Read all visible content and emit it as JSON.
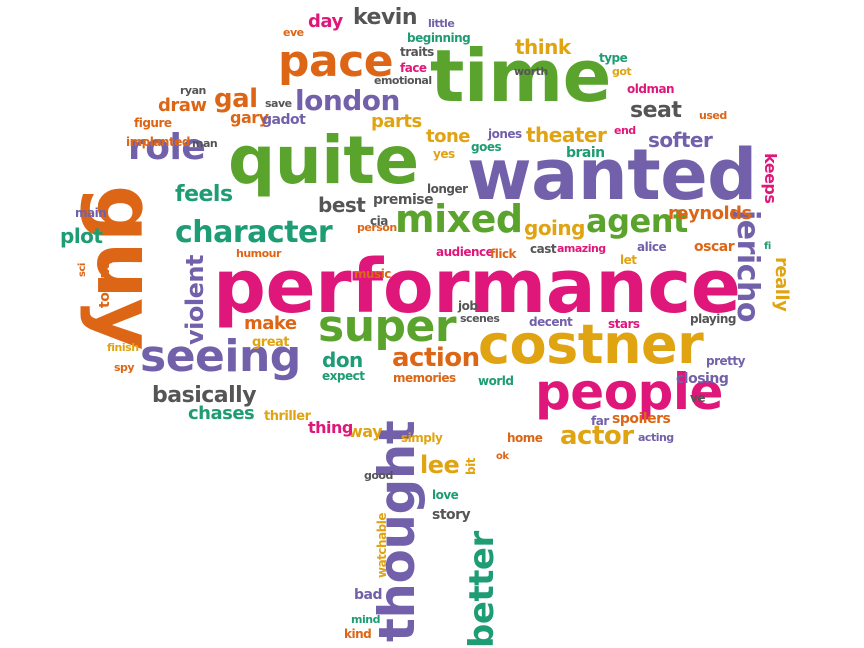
{
  "palette": {
    "magenta": "#e0177a",
    "purple": "#7261aa",
    "green": "#5aa42e",
    "orange": "#dd6516",
    "gold": "#e0a312",
    "teal": "#1e9c74",
    "gray": "#555555"
  },
  "words": [
    {
      "text": "performance",
      "color": "magenta"
    },
    {
      "text": "wanted",
      "color": "purple"
    },
    {
      "text": "time",
      "color": "green"
    },
    {
      "text": "quite",
      "color": "green"
    },
    {
      "text": "guy",
      "color": "orange"
    },
    {
      "text": "costner",
      "color": "gold"
    },
    {
      "text": "thought",
      "color": "purple"
    },
    {
      "text": "people",
      "color": "magenta"
    },
    {
      "text": "seeing",
      "color": "purple"
    },
    {
      "text": "super",
      "color": "green"
    },
    {
      "text": "pace",
      "color": "orange"
    },
    {
      "text": "mixed",
      "color": "green"
    },
    {
      "text": "character",
      "color": "teal"
    },
    {
      "text": "role",
      "color": "purple"
    },
    {
      "text": "london",
      "color": "purple"
    },
    {
      "text": "agent",
      "color": "green"
    },
    {
      "text": "better",
      "color": "teal"
    },
    {
      "text": "jericho",
      "color": "purple"
    },
    {
      "text": "action",
      "color": "orange"
    },
    {
      "text": "actor",
      "color": "gold"
    },
    {
      "text": "basically",
      "color": "gray"
    },
    {
      "text": "violent",
      "color": "purple"
    },
    {
      "text": "gal",
      "color": "orange"
    },
    {
      "text": "feels",
      "color": "teal"
    },
    {
      "text": "kevin",
      "color": "gray"
    },
    {
      "text": "seat",
      "color": "gray"
    },
    {
      "text": "softer",
      "color": "purple"
    },
    {
      "text": "theater",
      "color": "gold"
    },
    {
      "text": "think",
      "color": "gold"
    },
    {
      "text": "reynolds",
      "color": "orange"
    },
    {
      "text": "going",
      "color": "gold"
    },
    {
      "text": "lee",
      "color": "gold"
    },
    {
      "text": "plot",
      "color": "teal"
    },
    {
      "text": "really",
      "color": "gold"
    },
    {
      "text": "best",
      "color": "gray"
    },
    {
      "text": "make",
      "color": "orange"
    },
    {
      "text": "don",
      "color": "teal"
    },
    {
      "text": "chases",
      "color": "teal"
    },
    {
      "text": "draw",
      "color": "orange"
    },
    {
      "text": "tone",
      "color": "gold"
    },
    {
      "text": "parts",
      "color": "gold"
    },
    {
      "text": "keeps",
      "color": "magenta"
    },
    {
      "text": "gary",
      "color": "orange"
    },
    {
      "text": "gadot",
      "color": "purple"
    },
    {
      "text": "day",
      "color": "magenta"
    },
    {
      "text": "way",
      "color": "gold"
    },
    {
      "text": "thing",
      "color": "magenta"
    },
    {
      "text": "tommy",
      "color": "orange"
    },
    {
      "text": "cast",
      "color": "gray"
    },
    {
      "text": "premise",
      "color": "gray"
    },
    {
      "text": "memories",
      "color": "orange"
    },
    {
      "text": "spoilers",
      "color": "orange"
    },
    {
      "text": "closing",
      "color": "purple"
    },
    {
      "text": "jones",
      "color": "purple"
    },
    {
      "text": "home",
      "color": "orange"
    },
    {
      "text": "story",
      "color": "gray"
    },
    {
      "text": "love",
      "color": "teal"
    },
    {
      "text": "simply",
      "color": "gold"
    },
    {
      "text": "watchable",
      "color": "gold"
    },
    {
      "text": "bad",
      "color": "purple"
    },
    {
      "text": "kind",
      "color": "orange"
    },
    {
      "text": "beginning",
      "color": "teal"
    },
    {
      "text": "traits",
      "color": "gray"
    },
    {
      "text": "face",
      "color": "magenta"
    },
    {
      "text": "emotional",
      "color": "gray"
    },
    {
      "text": "worth",
      "color": "gray"
    },
    {
      "text": "brain",
      "color": "teal"
    },
    {
      "text": "longer",
      "color": "gray"
    },
    {
      "text": "goes",
      "color": "teal"
    },
    {
      "text": "yes",
      "color": "gold"
    },
    {
      "text": "implanted",
      "color": "orange"
    },
    {
      "text": "figure",
      "color": "orange"
    },
    {
      "text": "save",
      "color": "gray"
    },
    {
      "text": "ryan",
      "color": "gray"
    },
    {
      "text": "man",
      "color": "gray"
    },
    {
      "text": "main",
      "color": "purple"
    },
    {
      "text": "cia",
      "color": "gray"
    },
    {
      "text": "person",
      "color": "orange"
    },
    {
      "text": "audience",
      "color": "magenta"
    },
    {
      "text": "flick",
      "color": "orange"
    },
    {
      "text": "amazing",
      "color": "magenta"
    },
    {
      "text": "let",
      "color": "gold"
    },
    {
      "text": "alice",
      "color": "purple"
    },
    {
      "text": "oscar",
      "color": "orange"
    },
    {
      "text": "fi",
      "color": "teal"
    },
    {
      "text": "sci",
      "color": "orange"
    },
    {
      "text": "humour",
      "color": "orange"
    },
    {
      "text": "music",
      "color": "orange"
    },
    {
      "text": "job",
      "color": "gray"
    },
    {
      "text": "scenes",
      "color": "gray"
    },
    {
      "text": "decent",
      "color": "purple"
    },
    {
      "text": "stars",
      "color": "magenta"
    },
    {
      "text": "playing",
      "color": "gray"
    },
    {
      "text": "great",
      "color": "gold"
    },
    {
      "text": "finish",
      "color": "gold"
    },
    {
      "text": "spy",
      "color": "orange"
    },
    {
      "text": "expect",
      "color": "teal"
    },
    {
      "text": "pretty",
      "color": "purple"
    },
    {
      "text": "world",
      "color": "teal"
    },
    {
      "text": "ve",
      "color": "gray"
    },
    {
      "text": "far",
      "color": "purple"
    },
    {
      "text": "thriller",
      "color": "gold"
    },
    {
      "text": "acting",
      "color": "purple"
    },
    {
      "text": "ok",
      "color": "orange"
    },
    {
      "text": "good",
      "color": "gray"
    },
    {
      "text": "bit",
      "color": "gold"
    },
    {
      "text": "mind",
      "color": "teal"
    },
    {
      "text": "little",
      "color": "purple"
    },
    {
      "text": "eve",
      "color": "orange"
    },
    {
      "text": "type",
      "color": "teal"
    },
    {
      "text": "got",
      "color": "gold"
    },
    {
      "text": "oldman",
      "color": "magenta"
    },
    {
      "text": "used",
      "color": "orange"
    },
    {
      "text": "end",
      "color": "magenta"
    }
  ]
}
